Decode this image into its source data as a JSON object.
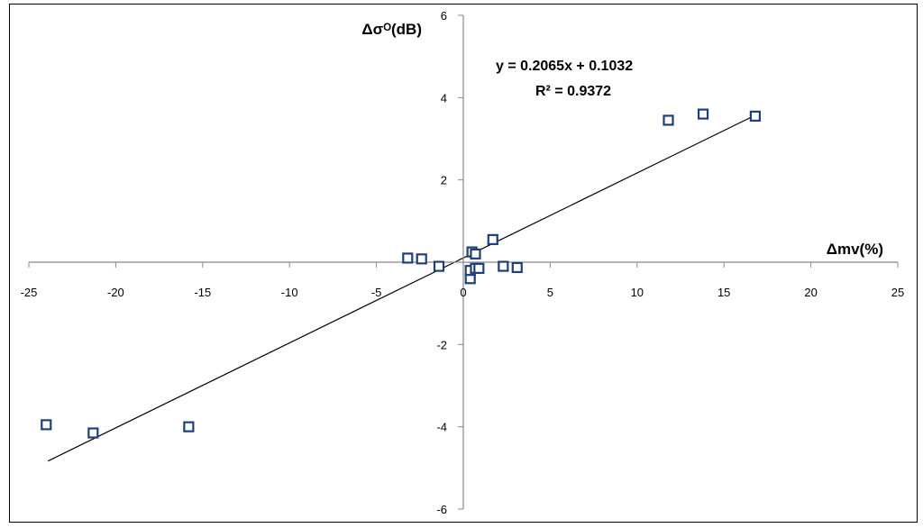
{
  "chart_data": {
    "type": "scatter",
    "xlabel": "Δmv(%)",
    "ylabel": "Δσᴼ(dB)",
    "xlim": [
      -25,
      25
    ],
    "ylim": [
      -6,
      6
    ],
    "x_ticks": [
      -25,
      -20,
      -15,
      -10,
      -5,
      0,
      5,
      10,
      15,
      20,
      25
    ],
    "y_ticks": [
      -6,
      -4,
      -2,
      2,
      4,
      6
    ],
    "marker": "hollow-square",
    "marker_color": "#1f3f7a",
    "points": [
      {
        "x": -24.0,
        "y": -3.95
      },
      {
        "x": -21.3,
        "y": -4.15
      },
      {
        "x": -15.8,
        "y": -4.0
      },
      {
        "x": -3.2,
        "y": 0.1
      },
      {
        "x": -2.4,
        "y": 0.08
      },
      {
        "x": -1.4,
        "y": -0.1
      },
      {
        "x": 0.4,
        "y": -0.4
      },
      {
        "x": 0.4,
        "y": -0.2
      },
      {
        "x": 0.5,
        "y": 0.25
      },
      {
        "x": 0.7,
        "y": 0.2
      },
      {
        "x": 0.7,
        "y": -0.15
      },
      {
        "x": 0.9,
        "y": -0.15
      },
      {
        "x": 1.7,
        "y": 0.55
      },
      {
        "x": 2.3,
        "y": -0.1
      },
      {
        "x": 3.1,
        "y": -0.13
      },
      {
        "x": 11.8,
        "y": 3.45
      },
      {
        "x": 13.8,
        "y": 3.6
      },
      {
        "x": 16.8,
        "y": 3.55
      }
    ],
    "trendline": {
      "slope": 0.2065,
      "intercept": 0.1032,
      "x_range": [
        -23.9,
        16.8
      ],
      "equation": "y = 0.2065x + 0.1032",
      "r2_text": "R² = 0.9372"
    }
  }
}
